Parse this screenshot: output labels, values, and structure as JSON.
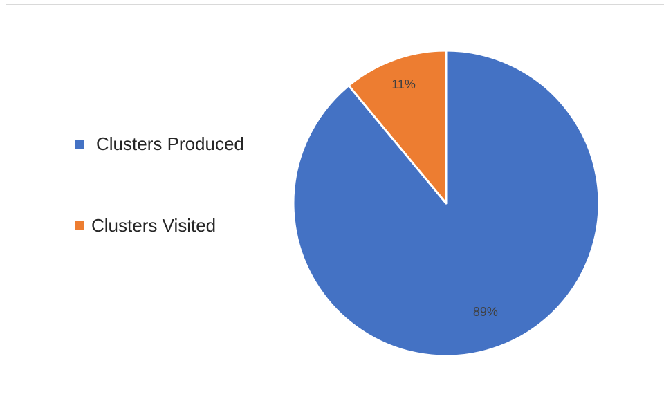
{
  "chart_data": {
    "type": "pie",
    "title": "",
    "categories": [
      "Clusters Produced",
      "Clusters Visited"
    ],
    "values": [
      89,
      11
    ],
    "data_labels": [
      "89%",
      "11%"
    ],
    "colors": [
      "#4472c4",
      "#ed7d31"
    ],
    "legend": "left"
  }
}
